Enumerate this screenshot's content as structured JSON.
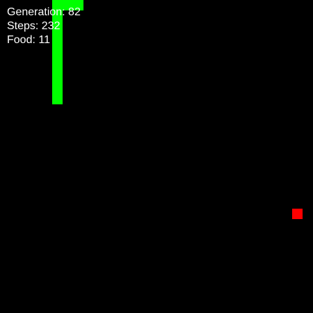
{
  "hud": {
    "generation": "Generation: 82",
    "steps": "Steps: 232",
    "food": "Food: 11"
  },
  "colors": {
    "background": "#000000",
    "snake": "#00ff00",
    "food": "#ff0000",
    "text": "#ffffff"
  }
}
